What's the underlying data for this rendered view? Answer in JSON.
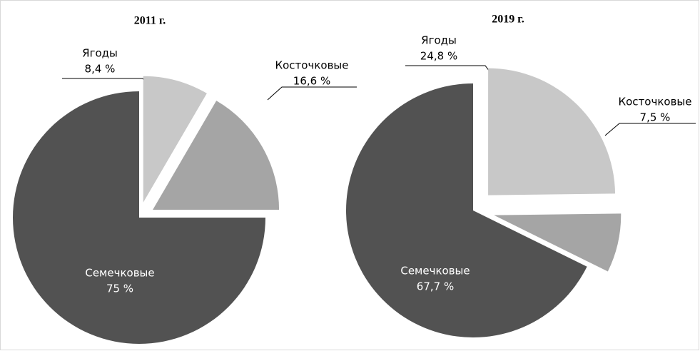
{
  "chart_data": [
    {
      "type": "pie",
      "title": "2011 г.",
      "categories": [
        "Ягоды",
        "Косточковые",
        "Семечковые"
      ],
      "values": [
        8.4,
        16.6,
        75
      ],
      "value_labels": [
        "8,4 %",
        "16,6 %",
        "75 %"
      ],
      "colors": [
        "#c8c8c8",
        "#a5a5a5",
        "#525252"
      ]
    },
    {
      "type": "pie",
      "title": "2019 г.",
      "categories": [
        "Ягоды",
        "Косточковые",
        "Семечковые"
      ],
      "values": [
        24.8,
        7.5,
        67.7
      ],
      "value_labels": [
        "24,8 %",
        "7,5 %",
        "67,7 %"
      ],
      "colors": [
        "#c8c8c8",
        "#a5a5a5",
        "#525252"
      ]
    }
  ]
}
